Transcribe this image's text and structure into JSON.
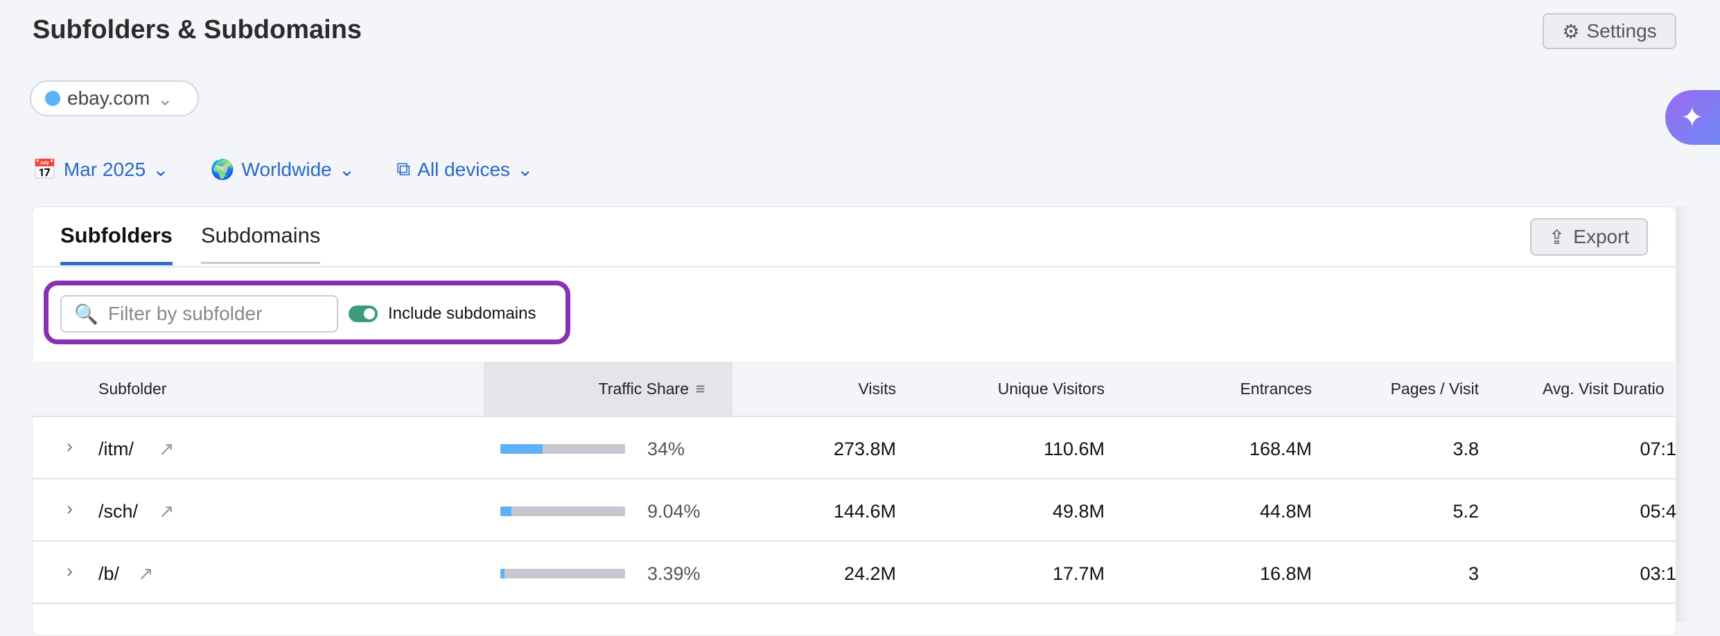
{
  "header": {
    "title": "Subfolders & Subdomains",
    "settings_label": "Settings",
    "domain": "ebay.com",
    "domain_color": "#5eb1f7"
  },
  "filters": {
    "date": "Mar 2025",
    "region": "Worldwide",
    "device": "All devices"
  },
  "tabs": [
    {
      "label": "Subfolders",
      "active": true
    },
    {
      "label": "Subdomains",
      "active": false
    }
  ],
  "toolbar": {
    "export_label": "Export",
    "search_placeholder": "Filter by subfolder",
    "include_subdomains_label": "Include subdomains",
    "include_subdomains": true
  },
  "table": {
    "columns": [
      "Subfolder",
      "Traffic Share",
      "Visits",
      "Unique Visitors",
      "Entrances",
      "Pages / Visit",
      "Avg. Visit Duratio"
    ],
    "rows": [
      {
        "subfolder": "/itm/",
        "share": "34%",
        "share_value": 34,
        "visits": "273.8M",
        "unique": "110.6M",
        "entrances": "168.4M",
        "pages": "3.8",
        "duration": "07:1"
      },
      {
        "subfolder": "/sch/",
        "share": "9.04%",
        "share_value": 9.04,
        "visits": "144.6M",
        "unique": "49.8M",
        "entrances": "44.8M",
        "pages": "5.2",
        "duration": "05:4"
      },
      {
        "subfolder": "/b/",
        "share": "3.39%",
        "share_value": 3.39,
        "visits": "24.2M",
        "unique": "17.7M",
        "entrances": "16.8M",
        "pages": "3",
        "duration": "03:1"
      }
    ]
  },
  "colors": {
    "accent": "#2d6bc8",
    "highlight": "#8a2fb5",
    "toggle": "#3f9a7b",
    "bar": "#5eb1f7"
  }
}
